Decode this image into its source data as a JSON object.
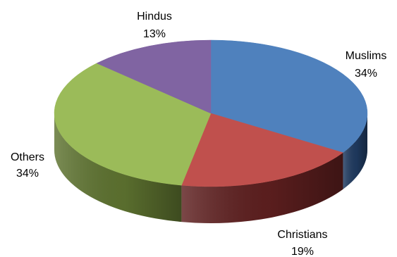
{
  "chart_data": {
    "type": "pie",
    "style": "3d",
    "title": "",
    "slices": [
      {
        "label": "Muslims",
        "value": 34,
        "value_label": "34%",
        "color": "#4F81BD",
        "side_color": "#1F3A60"
      },
      {
        "label": "Christians",
        "value": 19,
        "value_label": "19%",
        "color": "#C0504D",
        "side_color": "#5E1F1F"
      },
      {
        "label": "Others",
        "value": 34,
        "value_label": "34%",
        "color": "#9BBB59",
        "side_color": "#5E7330"
      },
      {
        "label": "Hindus",
        "value": 13,
        "value_label": "13%",
        "color": "#8064A2",
        "side_color": "#4B3A63"
      }
    ],
    "legend": "none"
  }
}
